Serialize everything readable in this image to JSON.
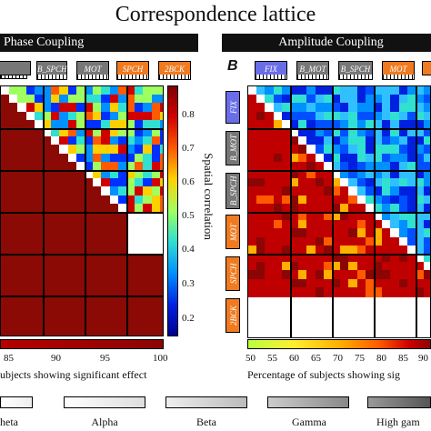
{
  "title": "Correspondence lattice",
  "panel_a": {
    "title": "Phase Coupling",
    "column_tags": [
      "B_SPCH",
      "MOT",
      "SPCH",
      "2BCK"
    ],
    "colorbar": {
      "label": "Spatial correlation",
      "ticks": [
        "0.8",
        "0.7",
        "0.6",
        "0.5",
        "0.4",
        "0.3",
        "0.2"
      ]
    },
    "bottom_bar": {
      "ticks": [
        "85",
        "90",
        "95",
        "100"
      ],
      "label": "ubjects showing significant effect"
    }
  },
  "panel_b": {
    "letter": "B",
    "title": "Amplitude Coupling",
    "column_tags": [
      "FIX",
      "B_MOT",
      "B_SPCH",
      "MOT"
    ],
    "row_tags": [
      "FIX",
      "B_MOT",
      "B_SPCH",
      "MOT",
      "SPCH",
      "2BCK"
    ],
    "bottom_bar": {
      "ticks": [
        "50",
        "55",
        "60",
        "65",
        "70",
        "75",
        "80",
        "85",
        "90"
      ],
      "label": "Percentage of subjects showing sig"
    }
  },
  "bands": [
    "heta",
    "Alpha",
    "Beta",
    "Gamma",
    "High gam"
  ],
  "colors": {
    "dark_red": "#8b0a05",
    "orange": "#f07a1f",
    "blue_tag": "#6a6de8",
    "gray_tag": "#777777"
  }
}
